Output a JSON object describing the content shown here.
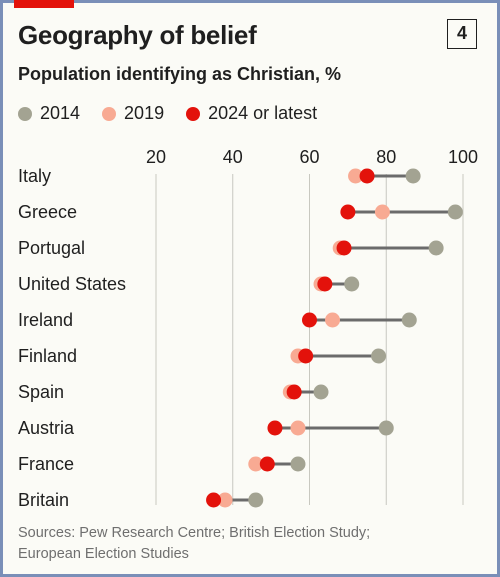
{
  "header": {
    "title": "Geography of belief",
    "badge": "4",
    "subtitle": "Population identifying as Christian, %"
  },
  "source": {
    "line1": "Sources: Pew Research Centre; British Election Study;",
    "line2": "European Election Studies"
  },
  "colors": {
    "accent": "#e3120b",
    "s2014": "#a3a392",
    "s2019": "#f8aa93",
    "s2024": "#e3120b",
    "connector": "#6b6b6b",
    "grid": "#c8c8c0"
  },
  "chart_data": {
    "type": "dot-range",
    "title": "Geography of belief",
    "subtitle": "Population identifying as Christian, %",
    "xlim": [
      20,
      100
    ],
    "xticks": [
      20,
      40,
      60,
      80,
      100
    ],
    "grid": true,
    "legend_position": "top",
    "categories": [
      "Italy",
      "Greece",
      "Portugal",
      "United States",
      "Ireland",
      "Finland",
      "Spain",
      "Austria",
      "France",
      "Britain"
    ],
    "series": [
      {
        "name": "2014",
        "values": [
          87,
          98,
          93,
          71,
          86,
          78,
          63,
          80,
          57,
          46
        ]
      },
      {
        "name": "2019",
        "values": [
          72,
          79,
          68,
          63,
          66,
          57,
          55,
          57,
          46,
          38
        ]
      },
      {
        "name": "2024 or latest",
        "values": [
          75,
          70,
          69,
          64,
          60,
          59,
          56,
          51,
          49,
          35
        ]
      }
    ]
  }
}
